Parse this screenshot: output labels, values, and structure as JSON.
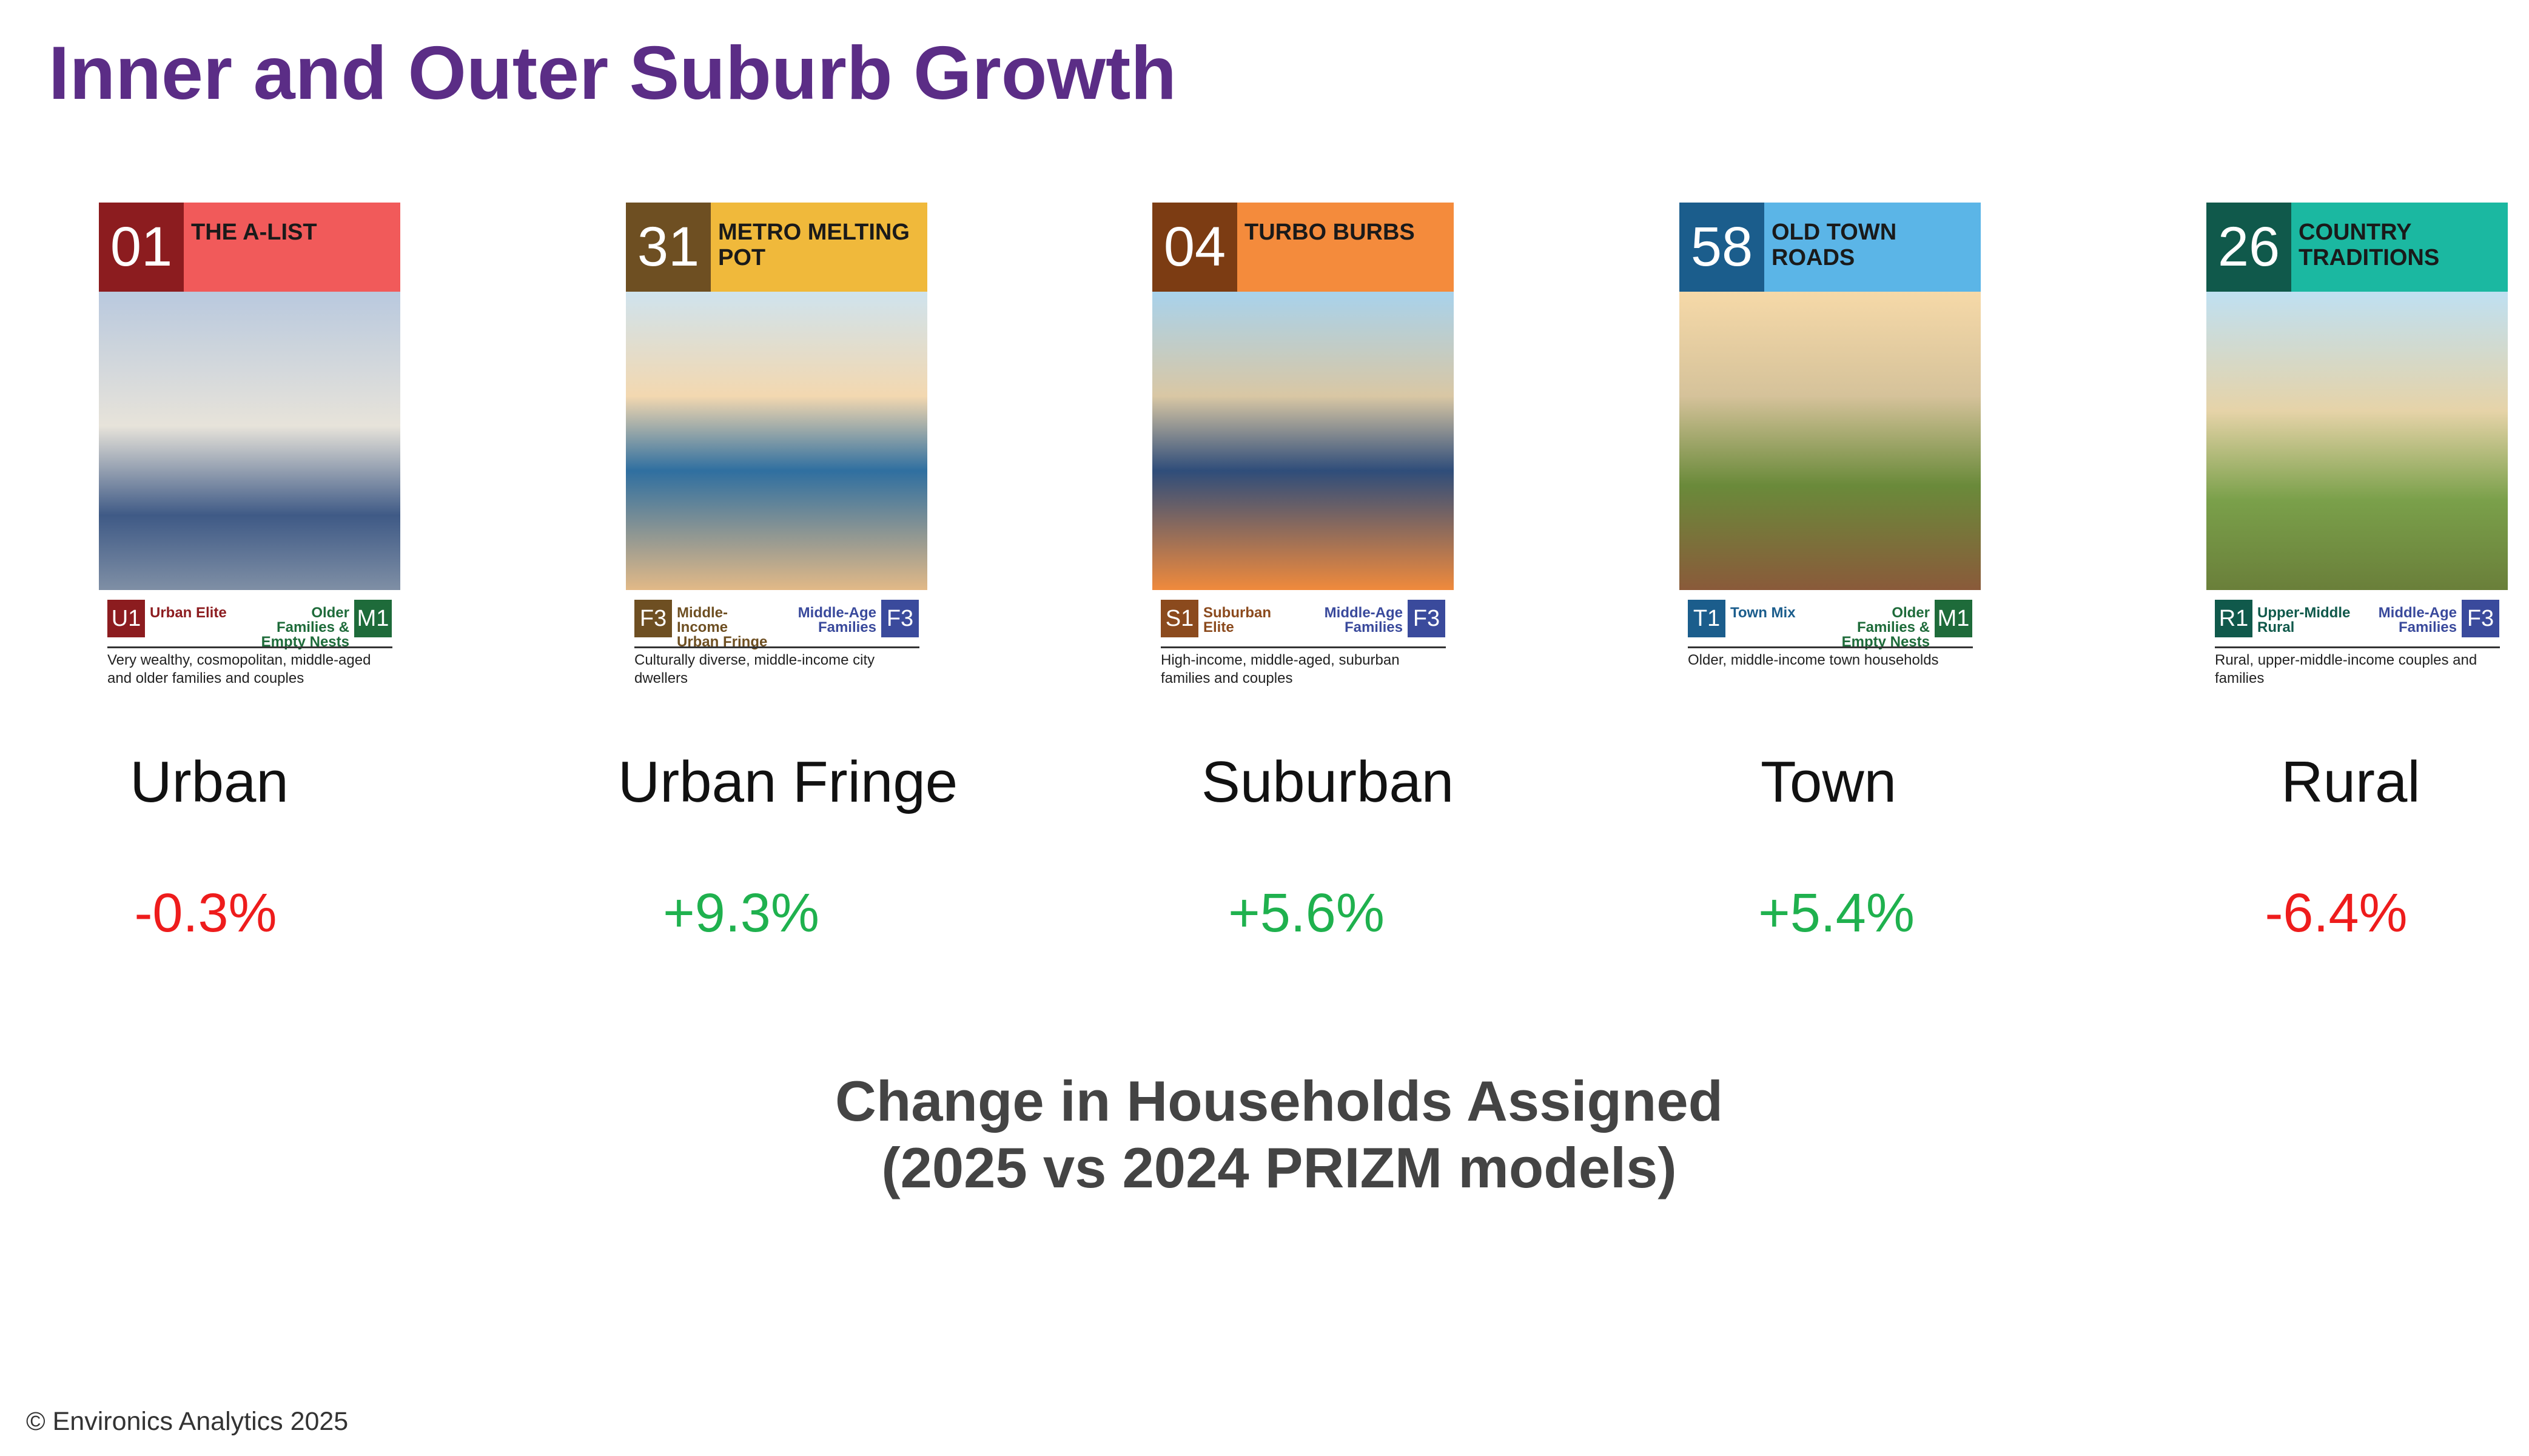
{
  "header": {
    "title": "Inner and Outer Suburb Growth"
  },
  "cards": [
    {
      "number": "01",
      "name": "THE A-LIST",
      "number_color": "#8c1c1f",
      "name_color": "#f15a5a",
      "left_code": "U1",
      "left_label": "Urban Elite",
      "left_color": "#8c1c1f",
      "right_label": "Older Families & Empty Nests",
      "right_code": "M1",
      "right_color": "#1e6b3a",
      "description": "Very wealthy, cosmopolitan, middle-aged and older families and couples",
      "category": "Urban",
      "change": "-0.3%",
      "change_color": "#ee1c1c"
    },
    {
      "number": "31",
      "name": "METRO MELTING POT",
      "number_color": "#6e4f22",
      "name_color": "#f0b93b",
      "left_code": "F3",
      "left_label": "Middle-Income Urban Fringe",
      "left_color": "#6e4f22",
      "right_label": "Middle-Age Families",
      "right_code": "F3",
      "right_color": "#3a4a9c",
      "description": "Culturally diverse, middle-income city dwellers",
      "category": "Urban Fringe",
      "change": "+9.3%",
      "change_color": "#1fb14e"
    },
    {
      "number": "04",
      "name": "TURBO BURBS",
      "number_color": "#7c3c13",
      "name_color": "#f48b3c",
      "left_code": "S1",
      "left_label": "Suburban Elite",
      "left_color": "#8b4a1d",
      "right_label": "Middle-Age Families",
      "right_code": "F3",
      "right_color": "#3a4a9c",
      "description": "High-income, middle-aged, suburban families and couples",
      "category": "Suburban",
      "change": "+5.6%",
      "change_color": "#1fb14e"
    },
    {
      "number": "58",
      "name": "OLD TOWN ROADS",
      "number_color": "#1b5d8c",
      "name_color": "#5bb5e7",
      "left_code": "T1",
      "left_label": "Town Mix",
      "left_color": "#1b5d8c",
      "right_label": "Older Families & Empty Nests",
      "right_code": "M1",
      "right_color": "#1e6b3a",
      "description": "Older, middle-income town households",
      "category": "Town",
      "change": "+5.4%",
      "change_color": "#1fb14e"
    },
    {
      "number": "26",
      "name": "COUNTRY TRADITIONS",
      "number_color": "#10594b",
      "name_color": "#1bb8a1",
      "left_code": "R1",
      "left_label": "Upper-Middle Rural",
      "left_color": "#10594b",
      "right_label": "Middle-Age Families",
      "right_code": "F3",
      "right_color": "#3a4a9c",
      "description": "Rural, upper-middle-income couples and families",
      "category": "Rural",
      "change": "-6.4%",
      "change_color": "#ee1c1c"
    }
  ],
  "caption": {
    "line1": "Change in Households Assigned",
    "line2": "(2025 vs 2024 PRIZM models)"
  },
  "footer": "© Environics Analytics 2025"
}
